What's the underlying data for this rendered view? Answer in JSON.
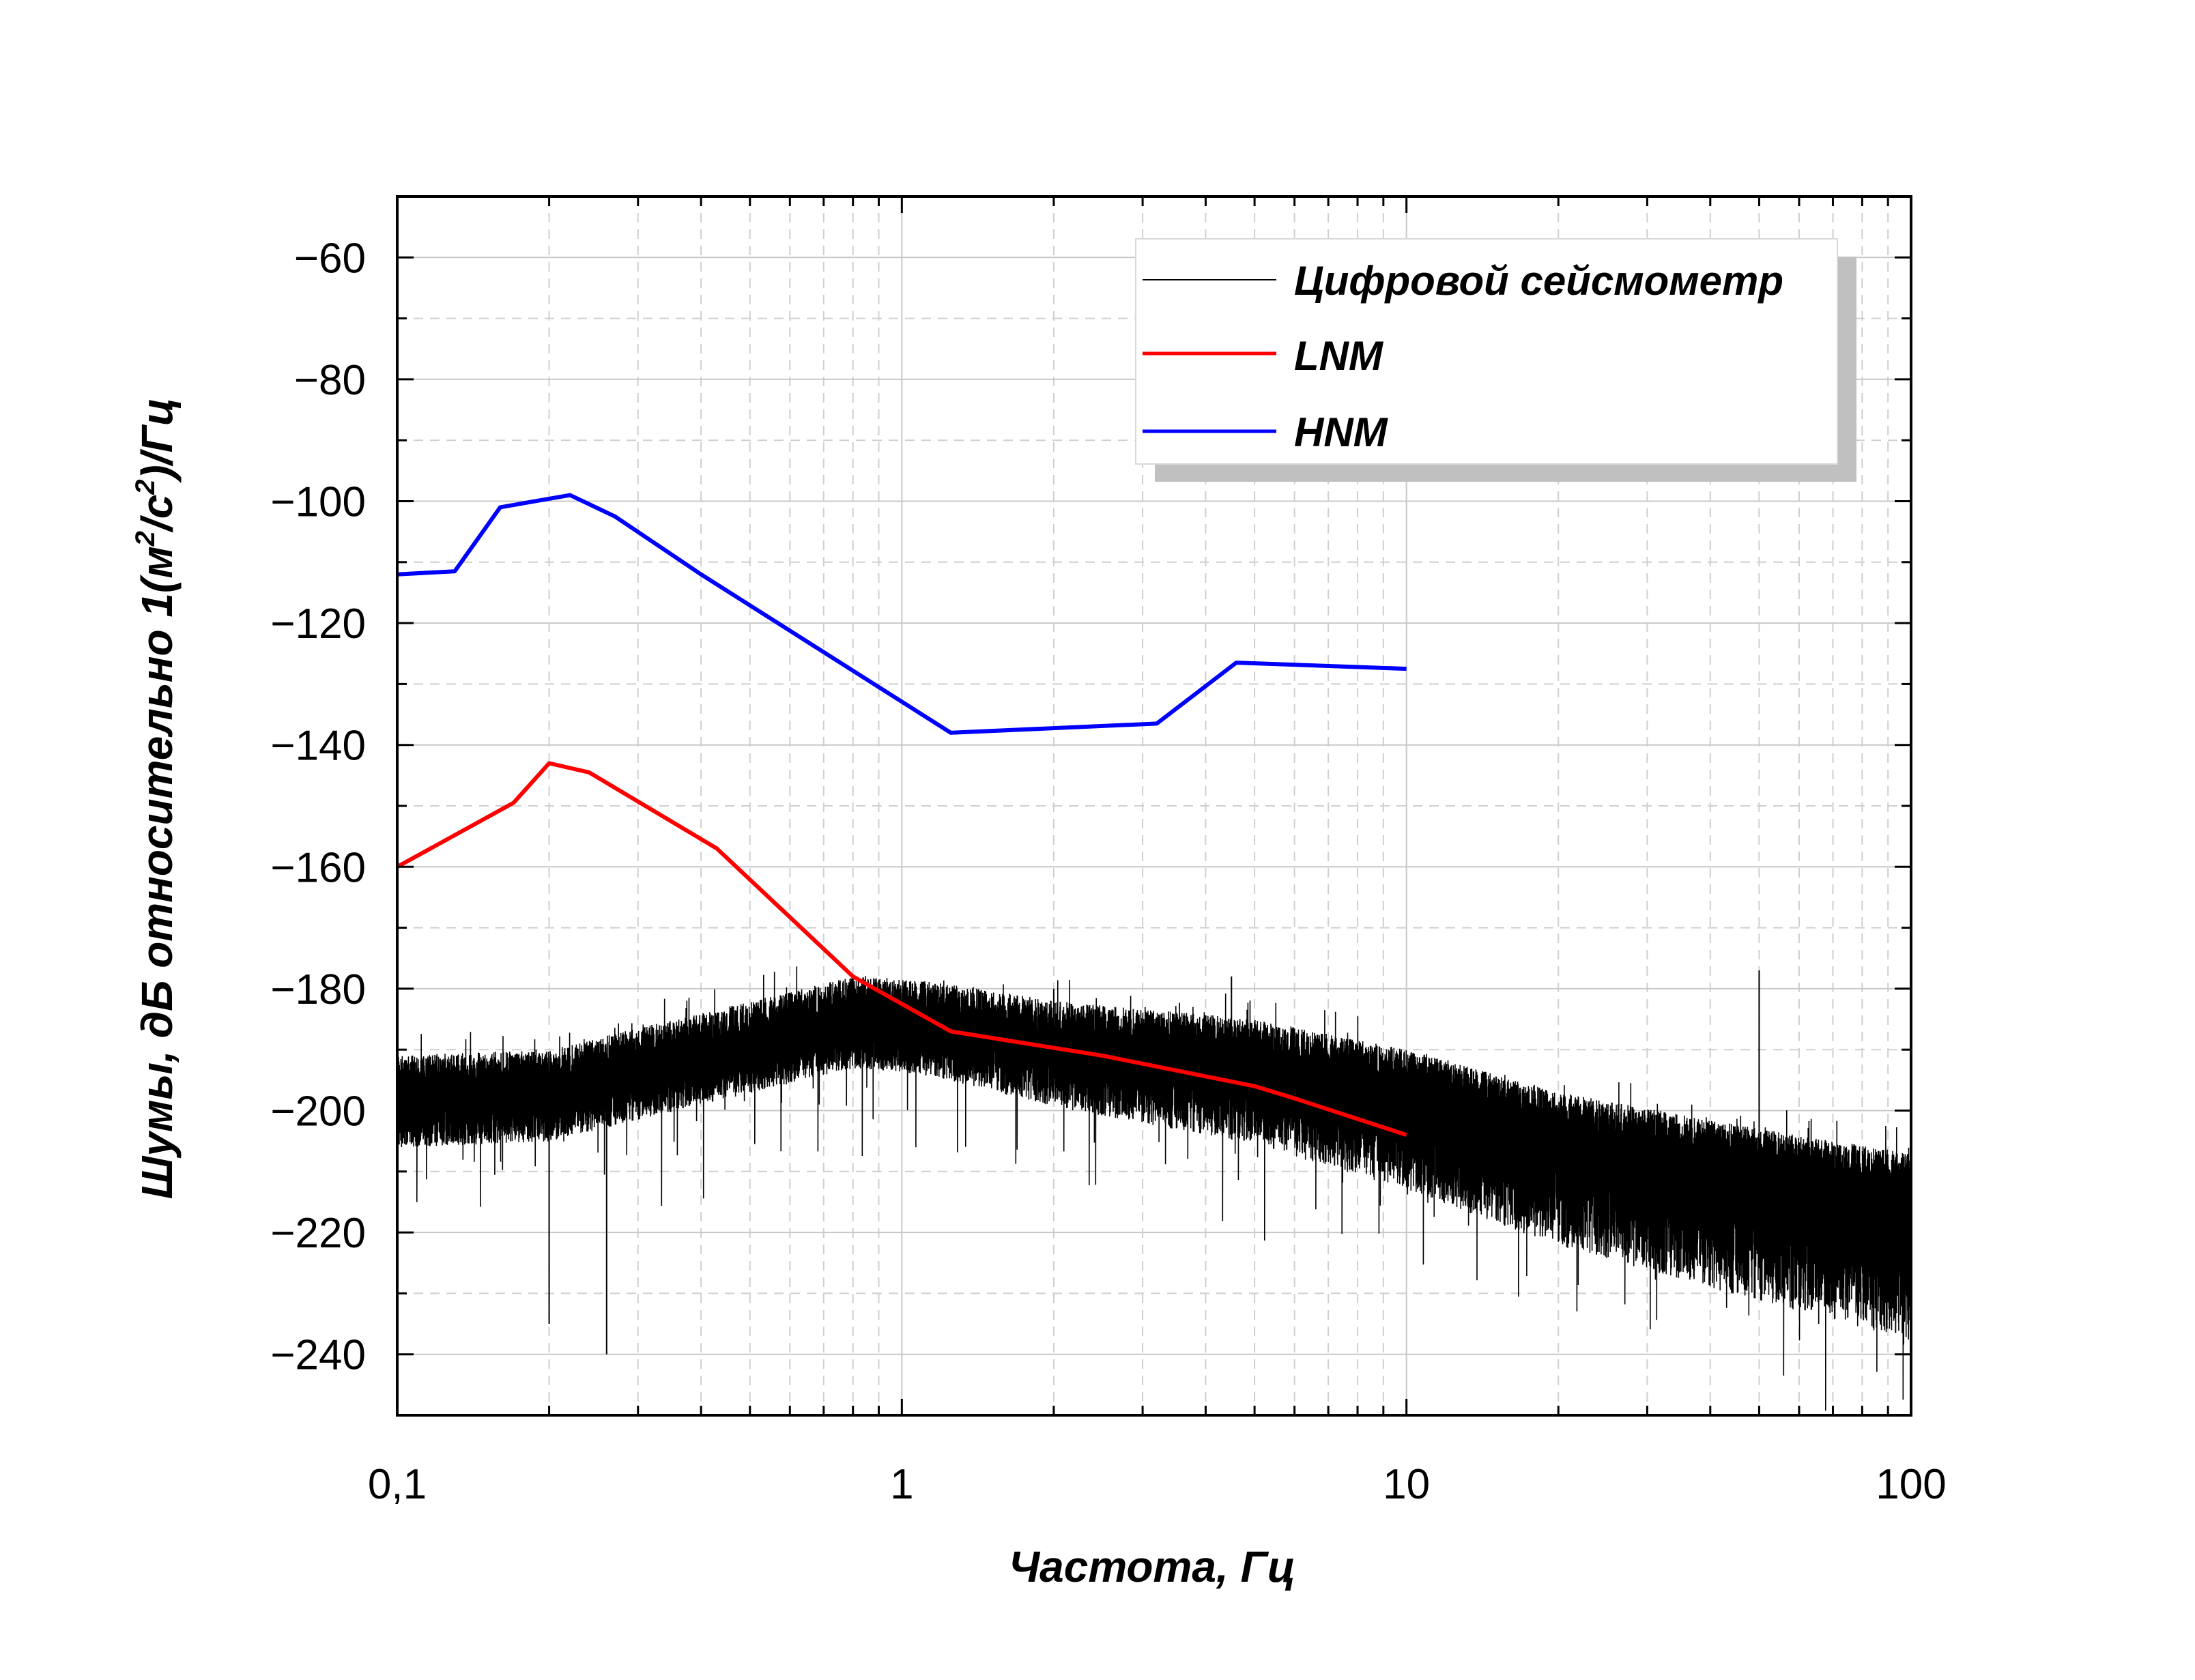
{
  "chart_data": {
    "type": "line",
    "xlabel": "Частота, Гц",
    "ylabel_main": "Шумы, дБ относительно 1(м",
    "ylabel_sup1": "2",
    "ylabel_mid": "/с",
    "ylabel_sup2": "2",
    "ylabel_end": ")/Гц",
    "x_scale": "log",
    "xlim": [
      0.1,
      100
    ],
    "ylim": [
      -250,
      -50
    ],
    "x_ticks": [
      0.1,
      1,
      10,
      100
    ],
    "x_tick_labels": [
      "0,1",
      "1",
      "10",
      "100"
    ],
    "y_ticks": [
      -60,
      -80,
      -100,
      -120,
      -140,
      -160,
      -180,
      -200,
      -220,
      -240
    ],
    "y_tick_labels": [
      "−60",
      "−80",
      "−100",
      "−120",
      "−140",
      "−160",
      "−180",
      "−200",
      "−220",
      "−240"
    ],
    "grid": true,
    "legend_position": "top-right",
    "series": [
      {
        "name": "Цифровой сейсмометр",
        "color": "#000000",
        "kind": "noise",
        "trend_x": [
          0.1,
          0.2,
          0.4,
          0.8,
          1.2,
          2,
          5,
          10,
          20,
          50,
          100
        ],
        "trend_y": [
          -197,
          -196,
          -190,
          -184,
          -185,
          -188,
          -191,
          -196,
          -203,
          -209,
          -213
        ],
        "spikes_x": [
          50,
          2,
          4.5,
          0.2,
          0.26
        ],
        "spikes_y": [
          -177,
          -180,
          -178,
          -235,
          -240
        ]
      },
      {
        "name": "LNM",
        "color": "#ff0000",
        "x": [
          0.1,
          0.17,
          0.2,
          0.24,
          0.43,
          0.8,
          1.25,
          2.5,
          5,
          6,
          10
        ],
        "y": [
          -160,
          -149.5,
          -143,
          -144.5,
          -157,
          -178,
          -187,
          -191,
          -196,
          -198,
          -204
        ]
      },
      {
        "name": "HNM",
        "color": "#0000ff",
        "x": [
          0.1,
          0.13,
          0.16,
          0.22,
          0.27,
          0.4,
          1.25,
          3.2,
          4.6,
          10
        ],
        "y": [
          -112,
          -111.5,
          -101,
          -99,
          -102.5,
          -112,
          -138,
          -136.5,
          -126.5,
          -127.5
        ]
      }
    ]
  }
}
